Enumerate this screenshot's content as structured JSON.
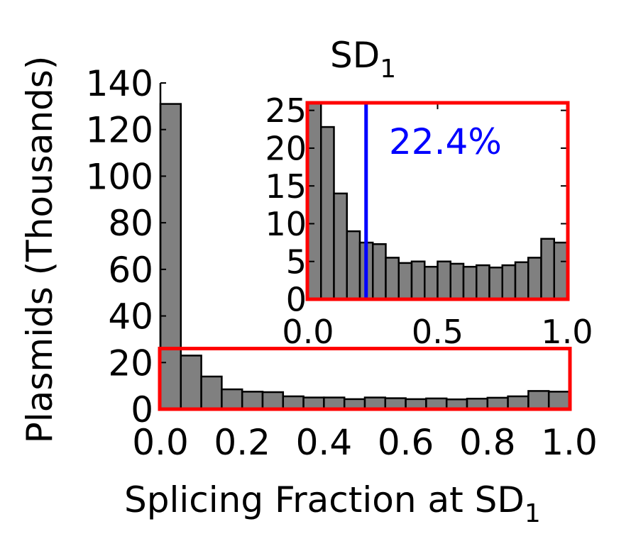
{
  "chart_data": [
    {
      "type": "bar",
      "role": "main",
      "xlabel": "Splicing Fraction at SD",
      "xlabel_sub": "1",
      "ylabel": "Plasmids (Thousands)",
      "xlim": [
        0.0,
        1.0
      ],
      "ylim": [
        0,
        140
      ],
      "xticks": [
        "0.0",
        "0.2",
        "0.4",
        "0.6",
        "0.8",
        "1.0"
      ],
      "yticks": [
        "0",
        "20",
        "40",
        "60",
        "80",
        "100",
        "120",
        "140"
      ],
      "bin_width": 0.05,
      "bin_starts": [
        0.0,
        0.05,
        0.1,
        0.15,
        0.2,
        0.25,
        0.3,
        0.35,
        0.4,
        0.45,
        0.5,
        0.55,
        0.6,
        0.65,
        0.7,
        0.75,
        0.8,
        0.85,
        0.9,
        0.95
      ],
      "values": [
        131,
        23,
        14,
        8.5,
        7.5,
        7.3,
        5.5,
        5,
        5,
        4.3,
        5,
        4.7,
        4.3,
        4.6,
        4.2,
        4.5,
        4.9,
        5.5,
        7.8,
        7.5
      ],
      "bar_color": "#808080",
      "zoom_box": {
        "x": [
          0.0,
          1.0
        ],
        "y": [
          0,
          26
        ],
        "color": "#ff0000"
      }
    },
    {
      "type": "bar",
      "role": "inset",
      "title": "SD",
      "title_sub": "1",
      "xlim": [
        0.0,
        1.0
      ],
      "ylim": [
        0,
        26
      ],
      "xticks": [
        "0.0",
        "0.5",
        "1.0"
      ],
      "yticks": [
        "0",
        "5",
        "10",
        "15",
        "20",
        "25"
      ],
      "bin_width": 0.05,
      "bin_starts": [
        0.0,
        0.05,
        0.1,
        0.15,
        0.2,
        0.25,
        0.3,
        0.35,
        0.4,
        0.45,
        0.5,
        0.55,
        0.6,
        0.65,
        0.7,
        0.75,
        0.8,
        0.85,
        0.9,
        0.95
      ],
      "values": [
        26,
        22.8,
        14,
        9,
        7.5,
        7.3,
        5.5,
        4.8,
        5,
        4.3,
        5,
        4.7,
        4.3,
        4.5,
        4.2,
        4.5,
        4.9,
        5.5,
        8,
        7.5
      ],
      "bar_color": "#808080",
      "frame_color": "#ff0000",
      "marker_line": {
        "x": 0.224,
        "color": "#0000ff"
      },
      "annotation": {
        "text": "22.4%",
        "color": "#0000ff"
      }
    }
  ]
}
